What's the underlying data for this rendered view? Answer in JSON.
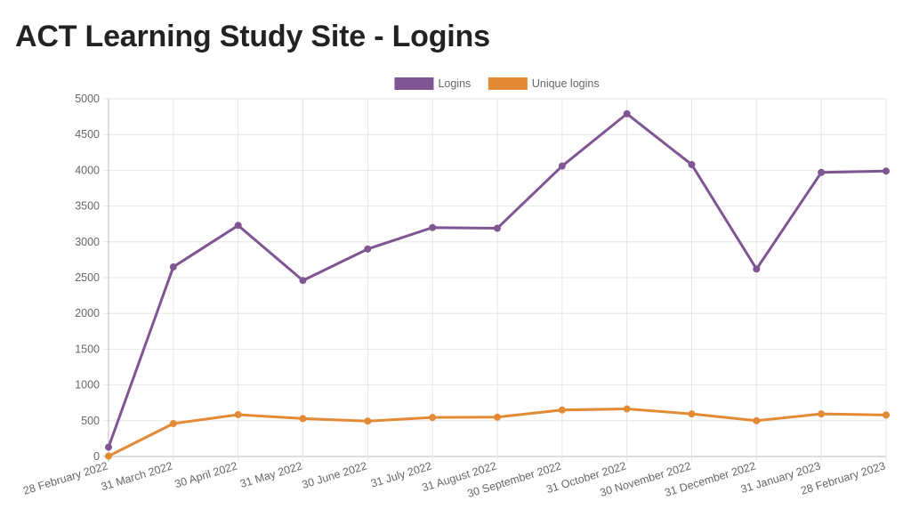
{
  "page": {
    "title": "ACT Learning Study Site - Logins"
  },
  "chart_data": {
    "type": "line",
    "title": "",
    "xlabel": "",
    "ylabel": "",
    "ylim": [
      0,
      5000
    ],
    "ytick_step": 500,
    "grid": true,
    "legend_position": "top-center",
    "categories": [
      "28 February 2022",
      "31 March 2022",
      "30 April 2022",
      "31 May 2022",
      "30 June 2022",
      "31 July 2022",
      "31 August 2022",
      "30 September 2022",
      "31 October 2022",
      "30 November 2022",
      "31 December 2022",
      "31 January 2023",
      "28 February 2023"
    ],
    "series": [
      {
        "name": "Logins",
        "color": "#7f5691",
        "values": [
          130,
          2650,
          3230,
          2460,
          2900,
          3200,
          3190,
          4060,
          4790,
          4080,
          2620,
          3970,
          3990
        ]
      },
      {
        "name": "Unique logins",
        "color": "#e28a34",
        "values": [
          5,
          460,
          585,
          530,
          495,
          545,
          550,
          650,
          665,
          595,
          500,
          595,
          580
        ]
      }
    ]
  }
}
